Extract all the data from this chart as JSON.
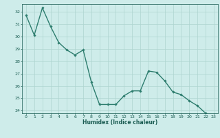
{
  "x": [
    0,
    1,
    2,
    3,
    4,
    5,
    6,
    7,
    8,
    9,
    10,
    11,
    12,
    13,
    14,
    15,
    16,
    17,
    18,
    19,
    20,
    21,
    22,
    23
  ],
  "y": [
    31.7,
    30.1,
    32.3,
    30.8,
    29.5,
    28.9,
    28.5,
    28.9,
    26.3,
    24.5,
    24.5,
    24.5,
    25.2,
    25.6,
    25.6,
    27.2,
    27.1,
    26.4,
    25.5,
    25.3,
    24.8,
    24.4,
    23.8,
    23.6
  ],
  "line_color": "#2d7d6e",
  "marker": "D",
  "marker_size": 1.8,
  "bg_color": "#ceecea",
  "grid_color": "#aed4d0",
  "xlabel": "Humidex (Indice chaleur)",
  "ylim": [
    23.8,
    32.6
  ],
  "yticks": [
    24,
    25,
    26,
    27,
    28,
    29,
    30,
    31,
    32
  ],
  "xticks": [
    0,
    1,
    2,
    3,
    4,
    5,
    6,
    7,
    8,
    9,
    10,
    11,
    12,
    13,
    14,
    15,
    16,
    17,
    18,
    19,
    20,
    21,
    22,
    23
  ],
  "font_color": "#1a5c52",
  "linewidth": 1.0,
  "tick_labelsize": 4.5,
  "xlabel_fontsize": 5.5
}
